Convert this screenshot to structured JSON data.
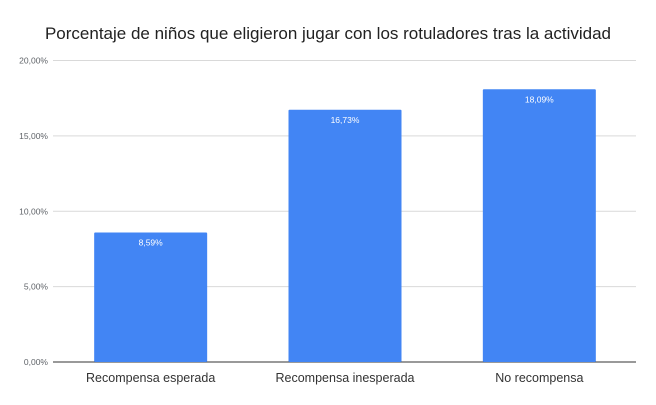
{
  "chart_data": {
    "type": "bar",
    "title": "Porcentaje de niños que eligieron jugar con los rotuladores tras la actividad",
    "categories": [
      "Recompensa esperada",
      "Recompensa inesperada",
      "No recompensa"
    ],
    "values": [
      8.59,
      16.73,
      18.09
    ],
    "data_labels": [
      "8,59%",
      "16,73%",
      "18,09%"
    ],
    "yticks": [
      0,
      5,
      10,
      15,
      20
    ],
    "ytick_labels": [
      "0,00%",
      "5,00%",
      "10,00%",
      "15,00%",
      "20,00%"
    ],
    "ylim": [
      0,
      20
    ],
    "xlabel": "",
    "ylabel": "",
    "grid": true,
    "legend": "none",
    "colors": {
      "bar": "#4285f4",
      "grid": "#d9d9d9",
      "axis": "#333333",
      "tick_text": "#5f6368",
      "category_text": "#333333",
      "data_label": "#ffffff"
    }
  }
}
